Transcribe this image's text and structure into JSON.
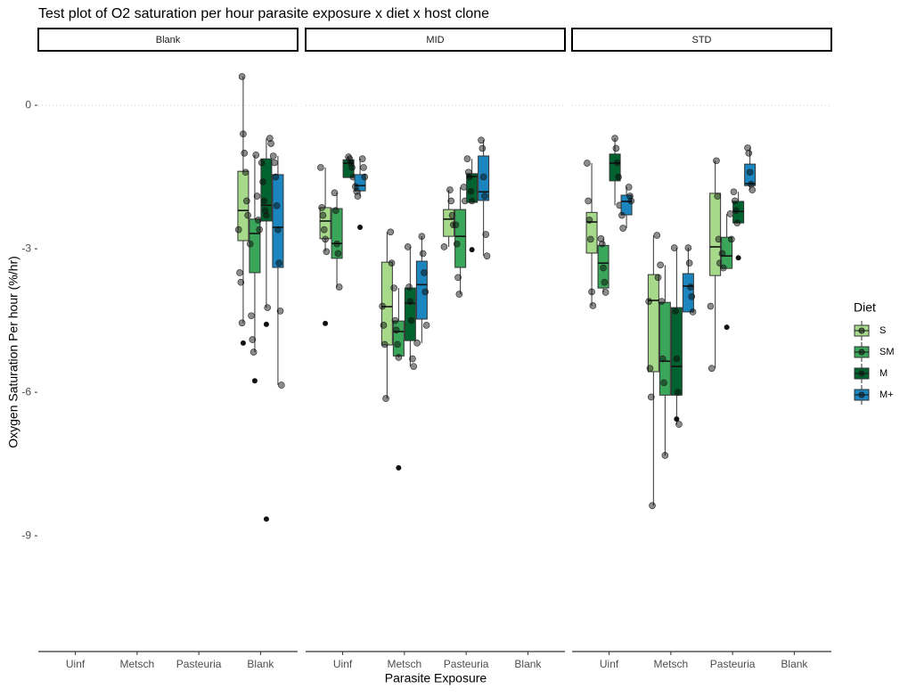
{
  "chart_data": {
    "type": "boxplot",
    "title": "Test plot of O2 saturation per hour parasite exposure x diet x host clone",
    "xlabel": "Parasite Exposure",
    "ylabel": "Oxygen Saturation Per hour (%/hr)",
    "facets": [
      "Blank",
      "MID",
      "STD"
    ],
    "categories": [
      "Uinf",
      "Metsch",
      "Pasteuria",
      "Blank"
    ],
    "legend_title": "Diet",
    "series": [
      {
        "name": "S",
        "color": "#a6d98a"
      },
      {
        "name": "SM",
        "color": "#3aa65a"
      },
      {
        "name": "M",
        "color": "#00622e"
      },
      {
        "name": "M+",
        "color": "#1a85bf"
      }
    ],
    "ylim": [
      -11.42,
      1.12
    ],
    "yticks": [
      0,
      -3,
      -6,
      -9
    ],
    "hline": 0,
    "boxes": [
      [
        [
          null,
          null,
          null,
          null
        ],
        [
          null,
          null,
          null,
          null
        ],
        [
          null,
          null,
          null,
          null
        ],
        [
          {
            "low": -4.55,
            "q1": -2.83,
            "median": -2.2,
            "q3": -1.38,
            "high": 0.6,
            "outliers": [
              -4.97
            ],
            "points": [
              0.6,
              -0.6,
              -1.0,
              -1.4,
              -2.0,
              -2.3,
              -2.6,
              -3.5,
              -3.7,
              -4.55
            ]
          },
          {
            "low": -5.16,
            "q1": -3.5,
            "median": -2.68,
            "q3": -2.38,
            "high": -1.04,
            "outliers": [
              -5.76
            ],
            "points": [
              -1.04,
              -1.9,
              -2.4,
              -2.6,
              -2.9,
              -4.4,
              -4.9,
              -5.16
            ]
          },
          {
            "low": -4.23,
            "q1": -2.42,
            "median": -2.09,
            "q3": -1.12,
            "high": -0.69,
            "outliers": [
              -4.58,
              -8.65
            ],
            "points": [
              -0.69,
              -0.8,
              -1.2,
              -1.6,
              -2.0,
              -2.2,
              -2.3,
              -4.23
            ]
          },
          {
            "low": -5.85,
            "q1": -3.39,
            "median": -2.55,
            "q3": -1.45,
            "high": -1.06,
            "outliers": [],
            "points": [
              -1.06,
              -1.2,
              -1.5,
              -2.1,
              -2.6,
              -3.3,
              -4.3,
              -5.85
            ]
          }
        ]
      ],
      [
        [
          {
            "low": -3.06,
            "q1": -2.79,
            "median": -2.42,
            "q3": -2.14,
            "high": -1.3,
            "outliers": [
              -4.56
            ],
            "points": [
              -1.3,
              -2.14,
              -2.3,
              -2.6,
              -2.8,
              -3.06
            ]
          },
          {
            "low": -3.8,
            "q1": -3.2,
            "median": -2.89,
            "q3": -2.16,
            "high": -1.83,
            "outliers": [],
            "points": [
              -1.83,
              -2.2,
              -2.9,
              -3.1,
              -3.8
            ]
          },
          {
            "low": -1.51,
            "q1": -1.51,
            "median": -1.21,
            "q3": -1.14,
            "high": -1.08,
            "outliers": [],
            "points": [
              -1.08,
              -1.12,
              -1.2,
              -1.3,
              -1.5
            ]
          },
          {
            "low": -1.9,
            "q1": -1.79,
            "median": -1.68,
            "q3": -1.45,
            "high": -1.12,
            "outliers": [
              -2.55
            ],
            "points": [
              -1.12,
              -1.3,
              -1.5,
              -1.7,
              -1.8,
              -1.9
            ]
          }
        ],
        [
          {
            "low": -6.13,
            "q1": -5.01,
            "median": -4.21,
            "q3": -3.28,
            "high": -2.65,
            "outliers": [],
            "points": [
              -2.65,
              -3.3,
              -4.2,
              -4.6,
              -5.0,
              -6.13
            ]
          },
          {
            "low": -5.27,
            "q1": -5.24,
            "median": -4.73,
            "q3": -4.51,
            "high": -3.82,
            "outliers": [
              -7.58
            ],
            "points": [
              -3.82,
              -4.5,
              -4.7,
              -5.0,
              -5.27
            ]
          },
          {
            "low": -5.46,
            "q1": -4.92,
            "median": -4.14,
            "q3": -3.82,
            "high": -2.96,
            "outliers": [],
            "points": [
              -2.96,
              -3.8,
              -4.1,
              -4.5,
              -5.3,
              -5.46
            ]
          },
          {
            "low": -4.97,
            "q1": -4.47,
            "median": -3.75,
            "q3": -3.26,
            "high": -2.74,
            "outliers": [],
            "points": [
              -2.74,
              -3.1,
              -3.5,
              -3.9,
              -4.6,
              -4.97
            ]
          }
        ],
        [
          {
            "low": -2.96,
            "q1": -2.74,
            "median": -2.38,
            "q3": -2.18,
            "high": -1.77,
            "outliers": [],
            "points": [
              -1.77,
              -2.0,
              -2.3,
              -2.5,
              -2.96
            ]
          },
          {
            "low": -3.95,
            "q1": -3.39,
            "median": -2.74,
            "q3": -2.18,
            "high": -1.71,
            "outliers": [],
            "points": [
              -1.71,
              -2.0,
              -2.5,
              -2.9,
              -3.6,
              -3.95
            ]
          },
          {
            "low": -2.03,
            "q1": -2.03,
            "median": -1.49,
            "q3": -1.43,
            "high": -1.12,
            "outliers": [
              -3.02
            ],
            "points": [
              -1.12,
              -1.4,
              -1.5,
              -1.8,
              -2.0
            ]
          },
          {
            "low": -3.15,
            "q1": -1.99,
            "median": -1.81,
            "q3": -1.06,
            "high": -0.73,
            "outliers": [],
            "points": [
              -0.73,
              -0.9,
              -1.5,
              -1.9,
              -2.7,
              -3.15
            ]
          }
        ],
        [
          null,
          null,
          null,
          null
        ]
      ],
      [
        [
          {
            "low": -4.19,
            "q1": -3.09,
            "median": -2.44,
            "q3": -2.24,
            "high": -1.21,
            "outliers": [],
            "points": [
              -1.21,
              -2.0,
              -2.4,
              -2.8,
              -3.9,
              -4.19
            ]
          },
          {
            "low": -3.91,
            "q1": -3.82,
            "median": -3.3,
            "q3": -2.93,
            "high": -2.79,
            "outliers": [],
            "points": [
              -2.79,
              -2.9,
              -3.4,
              -3.7,
              -3.91
            ]
          },
          {
            "low": -2.09,
            "q1": -1.58,
            "median": -1.21,
            "q3": -1.02,
            "high": -0.69,
            "outliers": [],
            "points": [
              -0.69,
              -0.9,
              -1.2,
              -1.5,
              -2.09
            ]
          },
          {
            "low": -2.57,
            "q1": -2.29,
            "median": -2.01,
            "q3": -1.88,
            "high": -1.71,
            "outliers": [],
            "points": [
              -1.71,
              -1.9,
              -2.0,
              -2.3,
              -2.57
            ]
          }
        ],
        [
          {
            "low": -8.37,
            "q1": -5.57,
            "median": -4.08,
            "q3": -3.54,
            "high": -2.72,
            "outliers": [],
            "points": [
              -2.72,
              -3.6,
              -4.1,
              -5.5,
              -6.1,
              -8.37
            ]
          },
          {
            "low": -7.32,
            "q1": -6.06,
            "median": -5.35,
            "q3": -4.12,
            "high": -3.34,
            "outliers": [],
            "points": [
              -3.34,
              -4.1,
              -5.3,
              -5.8,
              -7.32
            ]
          },
          {
            "low": -6.67,
            "q1": -6.06,
            "median": -5.46,
            "q3": -4.23,
            "high": -2.98,
            "outliers": [
              -6.56
            ],
            "points": [
              -2.98,
              -4.3,
              -5.3,
              -6.0,
              -6.67
            ]
          },
          {
            "low": -4.32,
            "q1": -4.32,
            "median": -3.78,
            "q3": -3.52,
            "high": -2.98,
            "outliers": [],
            "points": [
              -2.98,
              -3.3,
              -3.8,
              -4.0,
              -4.32
            ]
          }
        ],
        [
          {
            "low": -5.5,
            "q1": -3.56,
            "median": -2.96,
            "q3": -1.84,
            "high": -1.16,
            "outliers": [],
            "points": [
              -1.16,
              -1.9,
              -2.8,
              -3.3,
              -4.2,
              -5.5
            ]
          },
          {
            "low": -3.41,
            "q1": -3.41,
            "median": -3.15,
            "q3": -2.76,
            "high": -2.27,
            "outliers": [
              -4.64
            ],
            "points": [
              -2.27,
              -2.8,
              -3.1,
              -3.4
            ]
          },
          {
            "low": -2.46,
            "q1": -2.46,
            "median": -2.22,
            "q3": -2.01,
            "high": -1.81,
            "outliers": [
              -3.19
            ],
            "points": [
              -1.81,
              -2.0,
              -2.2,
              -2.46
            ]
          },
          {
            "low": -1.77,
            "q1": -1.68,
            "median": -1.64,
            "q3": -1.23,
            "high": -0.89,
            "outliers": [],
            "points": [
              -0.89,
              -1.0,
              -1.4,
              -1.65,
              -1.77
            ]
          }
        ],
        [
          null,
          null,
          null,
          null
        ]
      ]
    ]
  }
}
